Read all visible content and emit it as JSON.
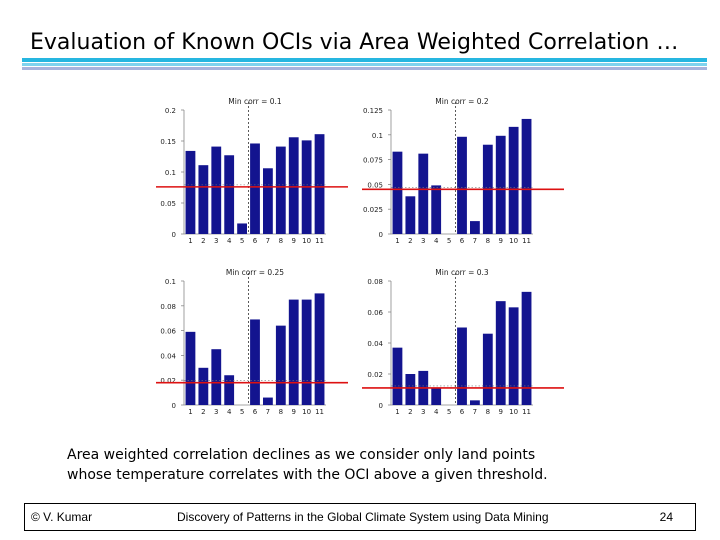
{
  "title": "Evaluation of Known OCIs via Area Weighted Correlation …",
  "caption_line1": "Area weighted correlation declines as we consider only land points",
  "caption_line2": "whose temperature correlates with the OCI above a given threshold.",
  "footer": {
    "author": "© V. Kumar",
    "course": "Discovery of Patterns in the Global Climate System using Data Mining",
    "page": "24"
  },
  "colors": {
    "bar": "#13148f",
    "threshold_line": "#dd1111",
    "accent": "#26b6e0"
  },
  "chart_data": [
    {
      "type": "bar",
      "title": "Min corr = 0.1",
      "categories": [
        "1",
        "2",
        "3",
        "4",
        "5",
        "6",
        "7",
        "8",
        "9",
        "10",
        "11"
      ],
      "values": [
        0.134,
        0.111,
        0.141,
        0.127,
        0.017,
        0.146,
        0.106,
        0.141,
        0.156,
        0.151,
        0.161
      ],
      "ylim": [
        0,
        0.2
      ],
      "yticks": [
        0,
        0.05,
        0.1,
        0.15,
        0.2
      ],
      "ytick_labels": [
        "0",
        "0.05",
        "0.1",
        "0.15",
        "0.2"
      ],
      "threshold_line": 0.076,
      "marker_after_category": "5"
    },
    {
      "type": "bar",
      "title": "Min corr = 0.2",
      "categories": [
        "1",
        "2",
        "3",
        "4",
        "5",
        "6",
        "7",
        "8",
        "9",
        "10",
        "11"
      ],
      "values": [
        0.083,
        0.038,
        0.081,
        0.049,
        0.0,
        0.098,
        0.013,
        0.09,
        0.099,
        0.108,
        0.116
      ],
      "ylim": [
        0,
        0.125
      ],
      "yticks": [
        0,
        0.025,
        0.05,
        0.075,
        0.1,
        0.125
      ],
      "ytick_labels": [
        "0",
        "0.025",
        "0.05",
        "0.075",
        "0.1",
        "0.125"
      ],
      "threshold_line": 0.045,
      "marker_after_category": "5"
    },
    {
      "type": "bar",
      "title": "Min corr = 0.25",
      "categories": [
        "1",
        "2",
        "3",
        "4",
        "5",
        "6",
        "7",
        "8",
        "9",
        "10",
        "11"
      ],
      "values": [
        0.059,
        0.03,
        0.045,
        0.024,
        0.0,
        0.069,
        0.006,
        0.064,
        0.085,
        0.085,
        0.09
      ],
      "ylim": [
        0,
        0.1
      ],
      "yticks": [
        0,
        0.02,
        0.04,
        0.06,
        0.08,
        0.1
      ],
      "ytick_labels": [
        "0",
        "0.02",
        "0.04",
        "0.06",
        "0.08",
        "0.1"
      ],
      "threshold_line": 0.018,
      "marker_after_category": "5"
    },
    {
      "type": "bar",
      "title": "Min corr = 0.3",
      "categories": [
        "1",
        "2",
        "3",
        "4",
        "5",
        "6",
        "7",
        "8",
        "9",
        "10",
        "11"
      ],
      "values": [
        0.037,
        0.02,
        0.022,
        0.011,
        0.0,
        0.05,
        0.003,
        0.046,
        0.067,
        0.063,
        0.073
      ],
      "ylim": [
        0,
        0.08
      ],
      "yticks": [
        0,
        0.02,
        0.04,
        0.06,
        0.08
      ],
      "ytick_labels": [
        "0",
        "0.02",
        "0.04",
        "0.06",
        "0.08"
      ],
      "threshold_line": 0.011,
      "marker_after_category": "5"
    }
  ]
}
